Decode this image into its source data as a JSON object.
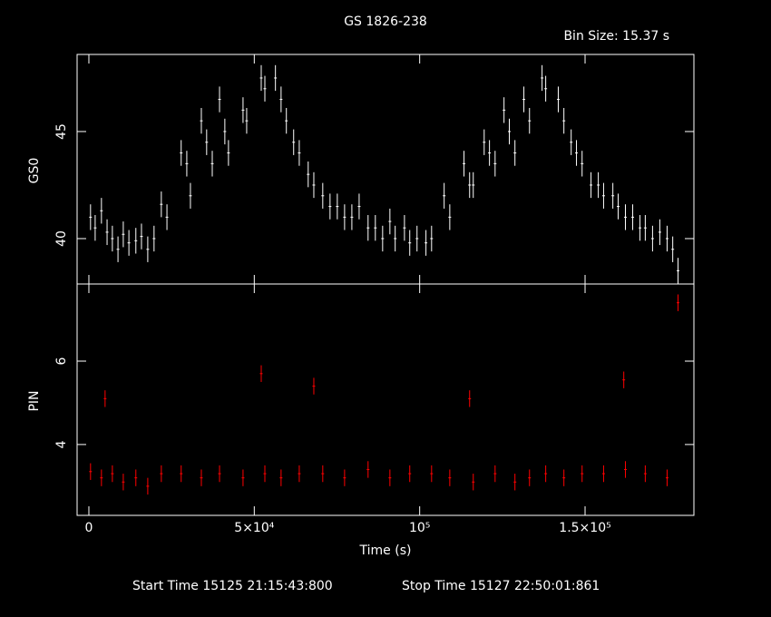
{
  "chart_data": [
    {
      "type": "scatter",
      "title": "GS 1826-238",
      "subtitle": "Bin Size: 15.37 s",
      "ylabel": "GS0",
      "color": "#ffffff",
      "x": [
        500,
        1900,
        3800,
        5500,
        7100,
        8800,
        10400,
        12100,
        14200,
        15900,
        17800,
        19700,
        21900,
        23600,
        27900,
        29600,
        30700,
        34000,
        35600,
        37300,
        39500,
        41100,
        42200,
        46600,
        47700,
        52100,
        53200,
        56400,
        58100,
        59700,
        61900,
        63600,
        66300,
        68000,
        70700,
        72900,
        75100,
        77300,
        79500,
        81700,
        84400,
        86600,
        88800,
        91000,
        92600,
        95400,
        97000,
        99200,
        101900,
        103600,
        107400,
        109100,
        113400,
        115100,
        116200,
        119500,
        121100,
        122800,
        125500,
        127100,
        128800,
        131500,
        133200,
        137000,
        138100,
        141900,
        143600,
        145800,
        147400,
        149100,
        151800,
        154000,
        155600,
        158400,
        160000,
        162200,
        164400,
        166600,
        168200,
        170400,
        172600,
        174800,
        176500,
        178100
      ],
      "values": [
        41.0,
        40.5,
        41.3,
        40.3,
        40.0,
        39.5,
        40.2,
        39.8,
        39.9,
        40.1,
        39.5,
        40.0,
        41.6,
        41.0,
        44.0,
        43.5,
        42.0,
        45.5,
        44.5,
        43.5,
        46.5,
        45.0,
        44.0,
        46.0,
        45.5,
        47.5,
        47.0,
        47.5,
        46.5,
        45.5,
        44.5,
        44.0,
        43.0,
        42.5,
        42.0,
        41.5,
        41.5,
        41.0,
        41.0,
        41.5,
        40.5,
        40.5,
        40.0,
        40.8,
        40.0,
        40.5,
        39.8,
        40.0,
        39.8,
        40.0,
        42.0,
        41.0,
        43.5,
        42.5,
        42.5,
        44.5,
        44.0,
        43.5,
        46.0,
        45.0,
        44.0,
        46.5,
        45.5,
        47.5,
        47.0,
        46.5,
        45.5,
        44.5,
        44.0,
        43.5,
        42.5,
        42.5,
        42.0,
        42.0,
        41.5,
        41.0,
        41.0,
        40.5,
        40.5,
        40.0,
        40.3,
        40.0,
        39.5,
        38.5
      ],
      "yerr": 0.6,
      "xlim": [
        -3560,
        182900
      ],
      "ylim": [
        37.88,
        48.6
      ],
      "yticks": [
        40,
        45
      ],
      "xticks": [
        0,
        50000,
        100000,
        150000
      ]
    },
    {
      "type": "scatter",
      "ylabel": "PIN",
      "xlabel": "Time (s)",
      "color": "#ff0000",
      "x": [
        500,
        3800,
        4900,
        7100,
        10400,
        14200,
        17800,
        21900,
        27900,
        34000,
        39500,
        46600,
        52100,
        53200,
        58100,
        63600,
        68000,
        70700,
        77300,
        84400,
        91000,
        97000,
        103600,
        109100,
        115100,
        116200,
        122800,
        128800,
        133200,
        138100,
        143600,
        149100,
        155600,
        161700,
        162200,
        168200,
        174800,
        178100
      ],
      "values": [
        3.35,
        3.2,
        5.1,
        3.3,
        3.1,
        3.2,
        3.0,
        3.3,
        3.3,
        3.2,
        3.3,
        3.2,
        5.7,
        3.3,
        3.2,
        3.3,
        5.4,
        3.3,
        3.2,
        3.4,
        3.2,
        3.3,
        3.3,
        3.2,
        5.1,
        3.1,
        3.3,
        3.1,
        3.2,
        3.3,
        3.2,
        3.3,
        3.3,
        5.55,
        3.4,
        3.3,
        3.2,
        7.4
      ],
      "yerr": 0.2,
      "xlim": [
        -3560,
        182900
      ],
      "ylim": [
        2.3,
        7.85
      ],
      "yticks": [
        4,
        6
      ],
      "xticks": [
        0,
        {
          "value": 50000,
          "label": "5×10⁴"
        },
        {
          "value": 100000,
          "label": "10⁵"
        },
        {
          "value": 150000,
          "label": "1.5×10⁵"
        }
      ],
      "annotations": [
        "Start Time 15125 21:15:43:800",
        "Stop Time 15127 22:50:01:861"
      ]
    }
  ]
}
